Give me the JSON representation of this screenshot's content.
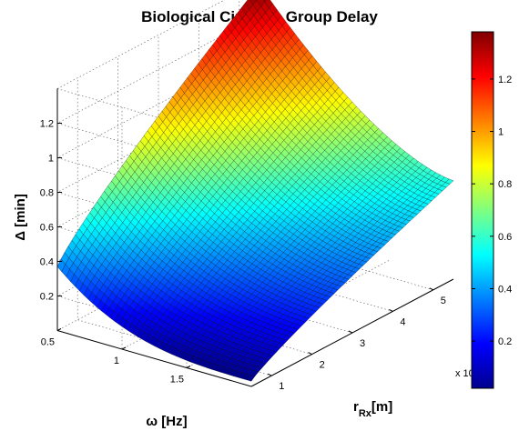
{
  "chart_data": {
    "type": "surface",
    "title": "Biological Circuit – Group Delay",
    "zlabel": "Δ [min]",
    "xlabel": "ω [Hz]",
    "ylabel_main": "r",
    "ylabel_sub": "Rx",
    "ylabel_unit": "[m]",
    "y_multiplier": "x 10",
    "x_ticks": [
      "0.5",
      "1",
      "1.5"
    ],
    "y_ticks": [
      "1",
      "2",
      "3",
      "4",
      "5"
    ],
    "z_ticks": [
      "0.2",
      "0.4",
      "0.6",
      "0.8",
      "1",
      "1.2"
    ],
    "colorbar_ticks": [
      "0.2",
      "0.4",
      "0.6",
      "0.8",
      "1",
      "1.2"
    ],
    "colormap": "jet",
    "x_range": [
      0.5,
      2.0
    ],
    "y_range": [
      0.5,
      5.5
    ],
    "z_range": [
      0,
      1.4
    ],
    "color_range": [
      0.02,
      1.38
    ],
    "corner_values": {
      "x_min_y_min": 0.37,
      "x_min_y_max": 1.38,
      "x_max_y_min": 0.03,
      "x_max_y_max": 0.57
    },
    "grid": true
  }
}
